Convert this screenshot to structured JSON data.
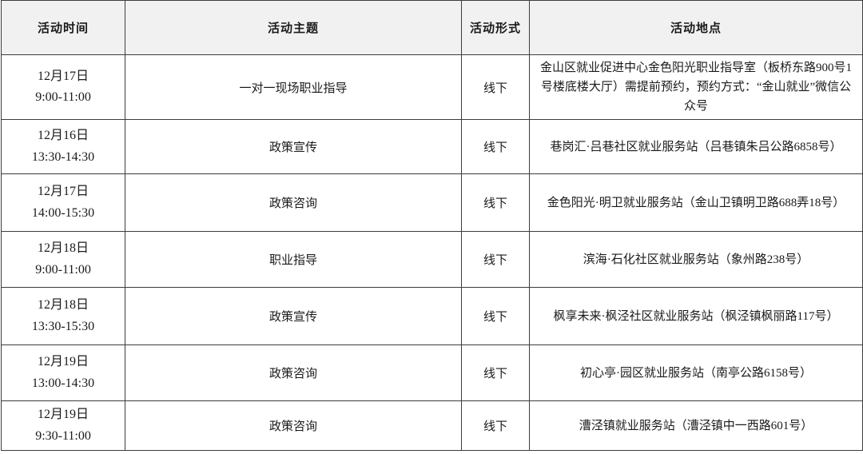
{
  "colors": {
    "header_background": "#F1F1F1",
    "grid_border": "#3C3C3C",
    "text": "#1A1A1A",
    "row_background": "#FFFFFF"
  },
  "table": {
    "headers": [
      "活动时间",
      "活动主题",
      "活动形式",
      "活动地点"
    ],
    "rows": [
      {
        "date": "12月17日",
        "time": "9:00-11:00",
        "topic": "一对一现场职业指导",
        "format": "线下",
        "location": "金山区就业促进中心金色阳光职业指导室（板桥东路900号1号楼底楼大厅）需提前预约，预约方式：“金山就业”微信公众号"
      },
      {
        "date": "12月16日",
        "time": "13:30-14:30",
        "topic": "政策宣传",
        "format": "线下",
        "location": "巷岗汇·吕巷社区就业服务站（吕巷镇朱吕公路6858号）"
      },
      {
        "date": "12月17日",
        "time": "14:00-15:30",
        "topic": "政策咨询",
        "format": "线下",
        "location": "金色阳光·明卫就业服务站（金山卫镇明卫路688弄18号）"
      },
      {
        "date": "12月18日",
        "time": "9:00-11:00",
        "topic": "职业指导",
        "format": "线下",
        "location": "滨海·石化社区就业服务站（象州路238号）"
      },
      {
        "date": "12月18日",
        "time": "13:30-15:30",
        "topic": "政策宣传",
        "format": "线下",
        "location": "枫享未来·枫泾社区就业服务站（枫泾镇枫丽路117号）"
      },
      {
        "date": "12月19日",
        "time": "13:00-14:30",
        "topic": "政策咨询",
        "format": "线下",
        "location": "初心亭·园区就业服务站（南亭公路6158号）"
      },
      {
        "date": "12月19日",
        "time": "9:30-11:00",
        "topic": "政策咨询",
        "format": "线下",
        "location": "漕泾镇就业服务站（漕泾镇中一西路601号）"
      }
    ]
  }
}
